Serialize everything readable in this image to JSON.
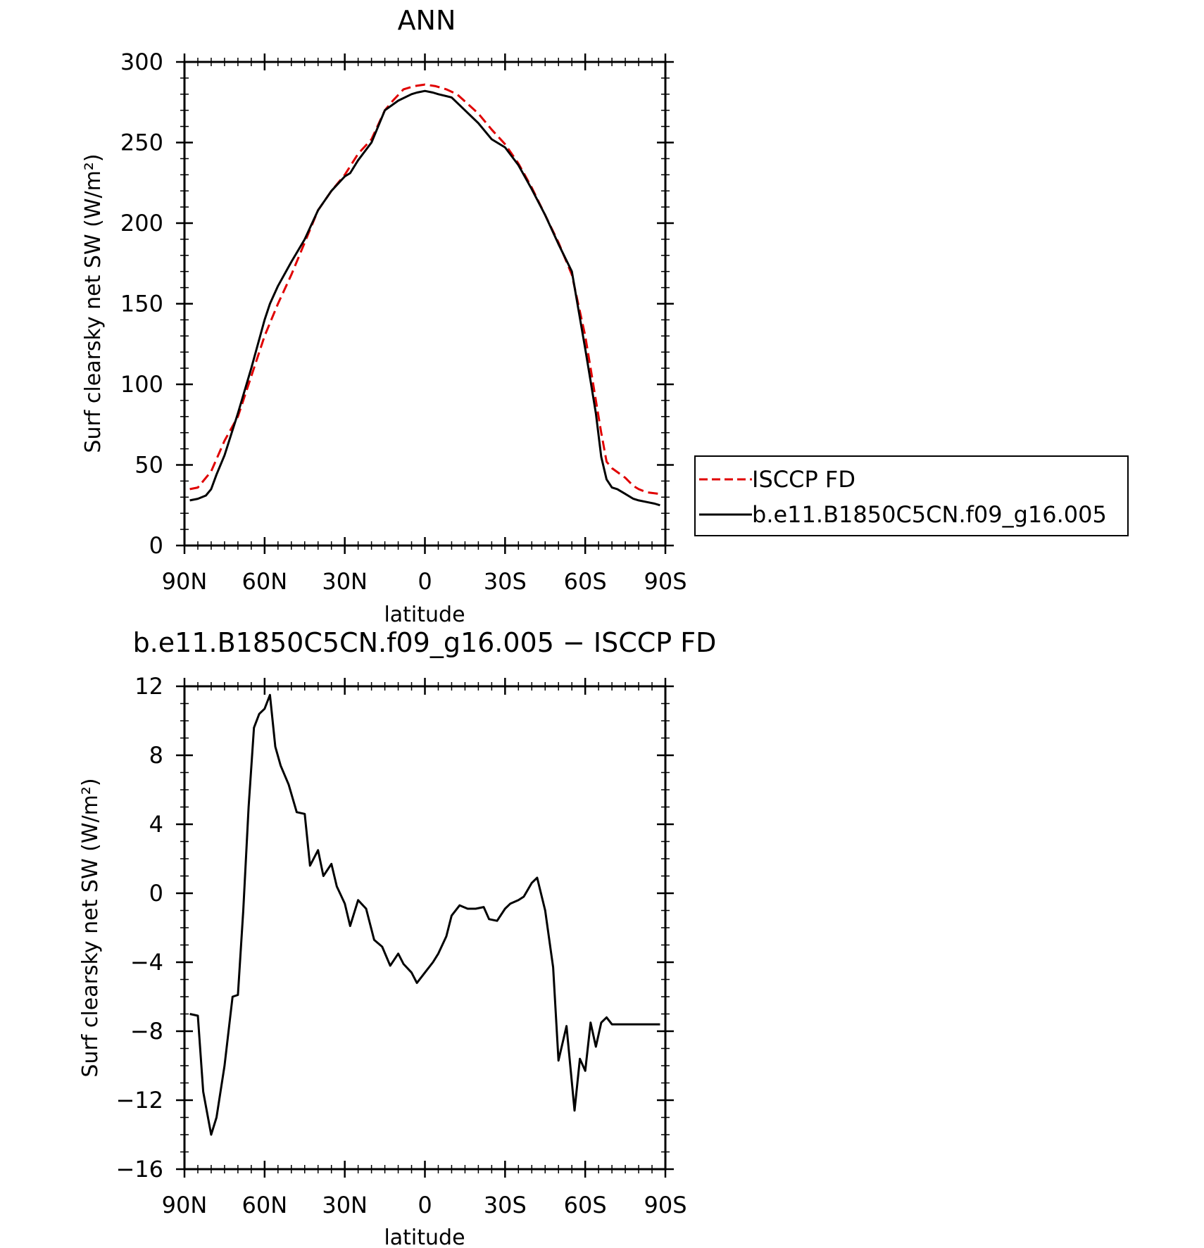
{
  "chart_data": [
    {
      "type": "line",
      "title": "ANN",
      "xlabel": "latitude",
      "ylabel": "Surf clearsky net SW (W/m²)",
      "ylim": [
        0,
        300
      ],
      "xlim": [
        90,
        -90
      ],
      "xticks": [
        90,
        60,
        30,
        0,
        -30,
        -60,
        -90
      ],
      "xtick_labels": [
        "90N",
        "60N",
        "30N",
        "0",
        "30S",
        "60S",
        "90S"
      ],
      "yticks": [
        0,
        50,
        100,
        150,
        200,
        250,
        300
      ],
      "ytick_labels": [
        "0",
        "50",
        "100",
        "150",
        "200",
        "250",
        "300"
      ],
      "legend_position": "right",
      "series": [
        {
          "name": "ISCCP FD",
          "color": "#e00000",
          "dash": "dashed",
          "x": [
            88,
            85,
            80,
            75,
            70,
            65,
            60,
            55,
            50,
            45,
            40,
            35,
            30,
            25,
            20,
            15,
            12,
            8,
            4,
            0,
            -4,
            -8,
            -12,
            -16,
            -20,
            -25,
            -30,
            -35,
            -40,
            -45,
            -50,
            -55,
            -60,
            -62,
            -64,
            -66,
            -68,
            -70,
            -75,
            -78,
            -80,
            -83,
            -88
          ],
          "y": [
            35,
            36,
            46,
            65,
            80,
            105,
            130,
            150,
            168,
            188,
            208,
            220,
            230,
            243,
            252,
            270,
            276,
            283,
            285,
            286,
            285,
            283,
            280,
            274,
            268,
            258,
            249,
            237,
            222,
            205,
            188,
            168,
            130,
            110,
            90,
            70,
            52,
            48,
            42,
            37,
            35,
            33,
            32
          ]
        },
        {
          "name": "b.e11.B1850C5CN.f09_g16.005",
          "color": "#000000",
          "dash": "solid",
          "x": [
            88,
            85,
            82,
            80,
            78,
            75,
            70,
            65,
            60,
            58,
            55,
            50,
            45,
            40,
            35,
            30,
            28,
            25,
            20,
            15,
            10,
            5,
            3,
            0,
            -3,
            -5,
            -10,
            -15,
            -20,
            -25,
            -30,
            -35,
            -40,
            -45,
            -50,
            -55,
            -60,
            -62,
            -64,
            -66,
            -68,
            -70,
            -72,
            -75,
            -78,
            -80,
            -83,
            -86,
            -88
          ],
          "y": [
            28,
            29,
            31,
            35,
            44,
            56,
            82,
            110,
            140,
            150,
            161,
            176,
            190,
            208,
            220,
            229,
            231,
            239,
            250,
            270,
            276,
            280,
            281,
            282,
            281,
            280,
            278,
            270,
            262,
            252,
            247,
            236,
            221,
            205,
            187,
            170,
            122,
            102,
            82,
            55,
            41,
            36,
            35,
            32,
            29,
            28,
            27,
            26,
            25
          ]
        }
      ]
    },
    {
      "type": "line",
      "title": "b.e11.B1850C5CN.f09_g16.005 − ISCCP FD",
      "xlabel": "latitude",
      "ylabel": "Surf clearsky net SW (W/m²)",
      "ylim": [
        -16,
        12
      ],
      "xlim": [
        90,
        -90
      ],
      "xticks": [
        90,
        60,
        30,
        0,
        -30,
        -60,
        -90
      ],
      "xtick_labels": [
        "90N",
        "60N",
        "30N",
        "0",
        "30S",
        "60S",
        "90S"
      ],
      "yticks": [
        -16,
        -12,
        -8,
        -4,
        0,
        4,
        8,
        12
      ],
      "ytick_labels": [
        "−16",
        "−12",
        "−8",
        "−4",
        "0",
        "4",
        "8",
        "12"
      ],
      "series": [
        {
          "color": "#000000",
          "dash": "solid",
          "x": [
            88,
            85,
            83,
            80,
            78,
            75,
            72,
            70,
            68,
            66,
            64,
            62,
            60,
            58,
            56,
            54,
            51,
            48,
            45,
            43,
            40,
            38,
            35,
            33,
            30,
            28,
            25,
            22,
            19,
            16,
            13,
            10,
            8,
            5,
            3,
            0,
            -3,
            -5,
            -8,
            -10,
            -13,
            -16,
            -19,
            -22,
            -24,
            -27,
            -30,
            -32,
            -35,
            -37,
            -40,
            -42,
            -45,
            -48,
            -50,
            -53,
            -56,
            -58,
            -60,
            -62,
            -64,
            -66,
            -68,
            -70,
            -72,
            -74,
            -76,
            -78,
            -81,
            -83,
            -86,
            -88
          ],
          "y": [
            -7.0,
            -7.1,
            -11.5,
            -14.0,
            -13.0,
            -10.0,
            -6.0,
            -5.9,
            -1.0,
            5.0,
            9.6,
            10.4,
            10.7,
            11.5,
            8.5,
            7.4,
            6.3,
            4.7,
            4.6,
            1.6,
            2.5,
            1.0,
            1.7,
            0.4,
            -0.6,
            -1.9,
            -0.4,
            -0.9,
            -2.7,
            -3.1,
            -4.2,
            -3.5,
            -4.1,
            -4.6,
            -5.2,
            -4.6,
            -4.0,
            -3.5,
            -2.5,
            -1.3,
            -0.7,
            -0.9,
            -0.9,
            -0.8,
            -1.5,
            -1.6,
            -0.9,
            -0.6,
            -0.4,
            -0.2,
            0.6,
            0.9,
            -1.0,
            -4.3,
            -9.7,
            -7.7,
            -12.6,
            -9.6,
            -10.3,
            -7.5,
            -8.9,
            -7.5,
            -7.2,
            -7.6,
            -7.6,
            -7.6,
            -7.6,
            -7.6,
            -7.6,
            -7.6,
            -7.6,
            -7.6
          ]
        }
      ]
    }
  ]
}
